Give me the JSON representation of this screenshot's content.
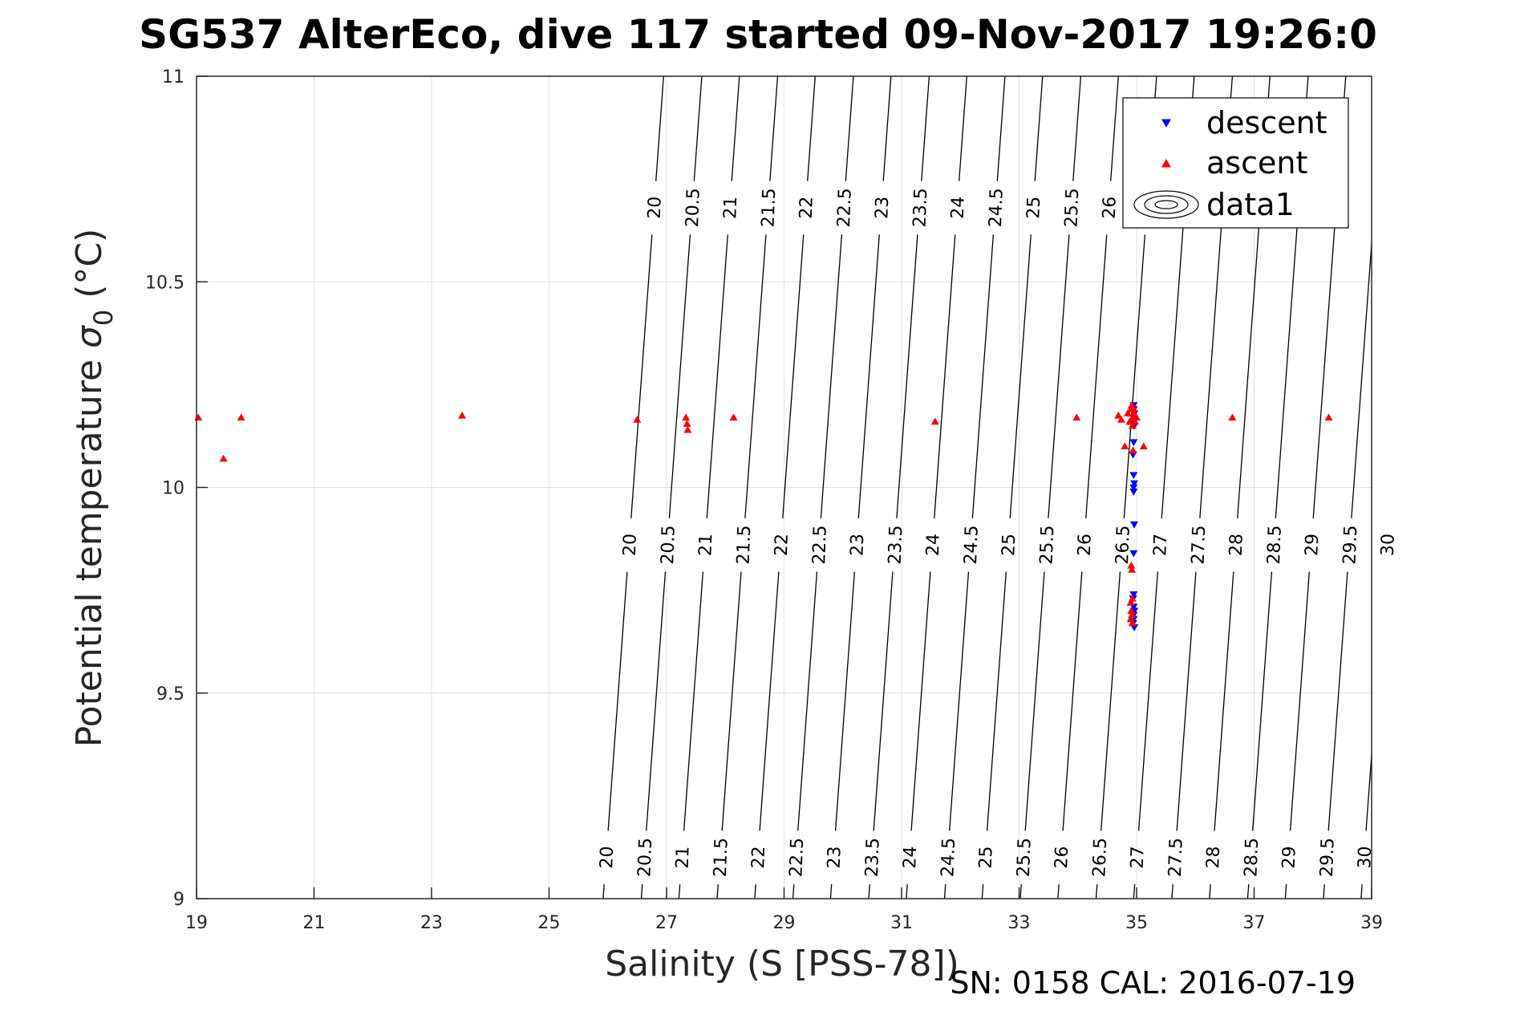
{
  "title": "SG537 AlterEco, dive 117 started 09-Nov-2017 19:26:0",
  "footer": "SN: 0158  CAL: 2016-07-19",
  "colors": {
    "descent": "#0000ff",
    "ascent": "#ff0000",
    "contour": "#000000",
    "grid": "#e0e0e0",
    "axis": "#262626"
  },
  "chart_data": {
    "type": "scatter",
    "title": "SG537 AlterEco, dive 117 started 09-Nov-2017 19:26:0",
    "xlabel": "Salinity (S [PSS-78])",
    "ylabel_main": "Potential temperature ",
    "ylabel_sigma": "σ",
    "ylabel_sub": "0",
    "ylabel_unit": " (°C)",
    "xlim": [
      19,
      39
    ],
    "ylim": [
      9,
      11
    ],
    "xticks": [
      19,
      21,
      23,
      25,
      27,
      29,
      31,
      33,
      35,
      37,
      39
    ],
    "yticks": [
      9,
      9.5,
      10,
      10.5,
      11
    ],
    "xtick_labels": [
      "19",
      "21",
      "23",
      "25",
      "27",
      "29",
      "31",
      "33",
      "35",
      "37",
      "39"
    ],
    "ytick_labels": [
      "9",
      "9.5",
      "10",
      "10.5",
      "11"
    ],
    "grid": true,
    "legend_position": "top-right",
    "legend": [
      {
        "label": "descent",
        "marker": "triangle-down",
        "color": "#0000ff"
      },
      {
        "label": "ascent",
        "marker": "triangle-up",
        "color": "#ff0000"
      },
      {
        "label": "data1",
        "marker": "contour",
        "color": "#000000"
      }
    ],
    "contours": [
      {
        "level": "20",
        "s_bottom": 25.92,
        "s_top": 26.95,
        "labels": [
          9.1,
          9.86,
          10.68
        ]
      },
      {
        "level": "20.5",
        "s_bottom": 26.57,
        "s_top": 27.6,
        "labels": [
          9.1,
          9.86,
          10.68
        ]
      },
      {
        "level": "21",
        "s_bottom": 27.21,
        "s_top": 28.24,
        "labels": [
          9.1,
          9.86,
          10.68
        ]
      },
      {
        "level": "21.5",
        "s_bottom": 27.86,
        "s_top": 28.89,
        "labels": [
          9.1,
          9.86,
          10.68
        ]
      },
      {
        "level": "22",
        "s_bottom": 28.5,
        "s_top": 29.53,
        "labels": [
          9.1,
          9.86,
          10.68
        ]
      },
      {
        "level": "22.5",
        "s_bottom": 29.15,
        "s_top": 30.18,
        "labels": [
          9.1,
          9.86,
          10.68
        ]
      },
      {
        "level": "23",
        "s_bottom": 29.79,
        "s_top": 30.82,
        "labels": [
          9.1,
          9.86,
          10.68
        ]
      },
      {
        "level": "23.5",
        "s_bottom": 30.44,
        "s_top": 31.47,
        "labels": [
          9.1,
          9.86,
          10.68
        ]
      },
      {
        "level": "24",
        "s_bottom": 31.08,
        "s_top": 32.11,
        "labels": [
          9.1,
          9.86,
          10.68
        ]
      },
      {
        "level": "24.5",
        "s_bottom": 31.73,
        "s_top": 32.76,
        "labels": [
          9.1,
          9.86,
          10.68
        ]
      },
      {
        "level": "25",
        "s_bottom": 32.37,
        "s_top": 33.4,
        "labels": [
          9.1,
          9.86,
          10.68
        ]
      },
      {
        "level": "25.5",
        "s_bottom": 33.02,
        "s_top": 34.05,
        "labels": [
          9.1,
          9.86,
          10.68
        ]
      },
      {
        "level": "26",
        "s_bottom": 33.66,
        "s_top": 34.69,
        "labels": [
          9.1,
          9.86,
          10.68
        ]
      },
      {
        "level": "26.5",
        "s_bottom": 34.31,
        "s_top": 35.34,
        "labels": [
          9.1,
          9.86,
          10.68
        ]
      },
      {
        "level": "27",
        "s_bottom": 34.95,
        "s_top": 35.98,
        "labels": [
          9.1,
          9.86
        ]
      },
      {
        "level": "27.5",
        "s_bottom": 35.6,
        "s_top": 36.63,
        "labels": [
          9.1,
          9.86
        ]
      },
      {
        "level": "28",
        "s_bottom": 36.24,
        "s_top": 37.27,
        "labels": [
          9.1,
          9.86
        ]
      },
      {
        "level": "28.5",
        "s_bottom": 36.89,
        "s_top": 37.92,
        "labels": [
          9.1,
          9.86
        ]
      },
      {
        "level": "29",
        "s_bottom": 37.53,
        "s_top": 38.56,
        "labels": [
          9.1,
          9.86
        ]
      },
      {
        "level": "29.5",
        "s_bottom": 38.18,
        "s_top": 39.21,
        "labels": [
          9.1,
          9.86
        ]
      },
      {
        "level": "30",
        "s_bottom": 38.82,
        "s_top": 39.85,
        "labels": [
          9.1,
          9.86
        ]
      }
    ],
    "series": [
      {
        "name": "descent",
        "marker": "triangle-down",
        "color": "#0000ff",
        "x": [
          34.95,
          34.95,
          34.96,
          34.94,
          34.95,
          34.96,
          34.95,
          34.94,
          34.95,
          34.96,
          34.95,
          34.95,
          34.96,
          34.95,
          34.95,
          34.94,
          34.95,
          34.96,
          34.95,
          34.95,
          34.94,
          34.96
        ],
        "y": [
          10.2,
          10.19,
          10.18,
          10.17,
          10.16,
          10.15,
          10.11,
          10.08,
          10.03,
          10.01,
          10.0,
          9.99,
          9.91,
          9.84,
          9.74,
          9.73,
          9.71,
          9.7,
          9.69,
          9.68,
          9.67,
          9.66
        ]
      },
      {
        "name": "ascent",
        "marker": "triangle-up",
        "color": "#ff0000",
        "x": [
          19.03,
          19.46,
          19.76,
          23.52,
          26.5,
          27.33,
          27.35,
          27.36,
          28.14,
          31.57,
          33.98,
          34.69,
          34.74,
          34.8,
          34.85,
          34.88,
          34.9,
          34.92,
          34.93,
          34.94,
          34.95,
          34.96,
          34.97,
          35.0,
          35.12,
          34.94,
          34.91,
          34.92,
          34.9,
          34.93,
          34.91,
          34.92,
          34.9,
          34.93,
          36.63,
          38.27
        ],
        "y": [
          10.17,
          10.07,
          10.17,
          10.175,
          10.165,
          10.17,
          10.155,
          10.14,
          10.17,
          10.16,
          10.17,
          10.175,
          10.165,
          10.1,
          10.18,
          10.16,
          10.19,
          10.2,
          10.15,
          10.17,
          10.18,
          10.19,
          10.16,
          10.17,
          10.1,
          10.09,
          9.81,
          9.8,
          9.72,
          9.73,
          9.7,
          9.69,
          9.68,
          9.67,
          10.17,
          10.17
        ]
      }
    ]
  }
}
